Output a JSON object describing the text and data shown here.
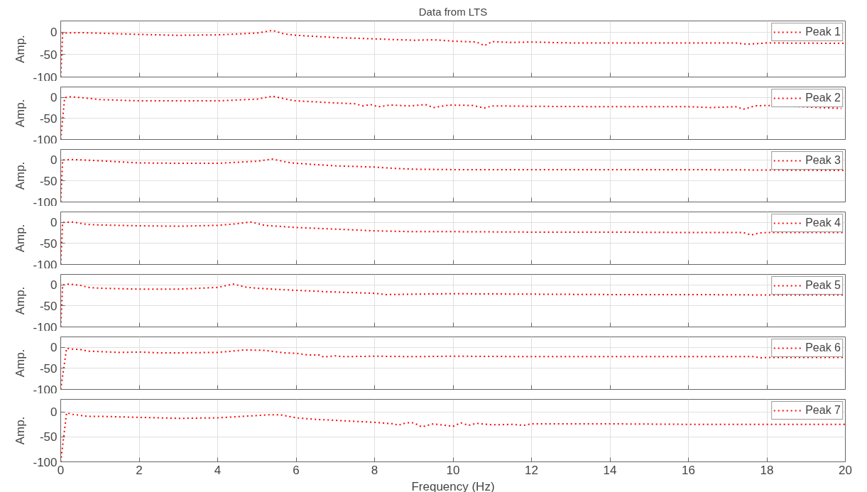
{
  "chart_data": [
    {
      "type": "line",
      "title": "Data from LTS",
      "ylabel": "Amp.",
      "xlim": [
        0,
        20
      ],
      "xticks": [
        0,
        2,
        4,
        6,
        8,
        10,
        12,
        14,
        16,
        18,
        20
      ],
      "ylim": [
        -100,
        25
      ],
      "yticks": [
        -100,
        -50,
        0
      ],
      "grid": true,
      "legend": "top right",
      "tick_labels": "y",
      "line_style": "dotted",
      "marker": "none",
      "series": [
        {
          "name": "Peak 1",
          "color": "#ff0000",
          "x": [
            0,
            0.05,
            0.5,
            2,
            3,
            4,
            5,
            5.4,
            5.7,
            6,
            7,
            8,
            9,
            9.5,
            10,
            10.6,
            10.8,
            11,
            11.5,
            12,
            13,
            14,
            16,
            17.2,
            17.5,
            18,
            20
          ],
          "values": [
            -100,
            -2,
            -1,
            -5,
            -7,
            -6,
            -2,
            4,
            -4,
            -7,
            -12,
            -15,
            -18,
            -17,
            -20,
            -22,
            -30,
            -21,
            -23,
            -22,
            -24,
            -24,
            -24,
            -24,
            -27,
            -24,
            -25
          ]
        }
      ]
    },
    {
      "type": "line",
      "ylabel": "Amp.",
      "xlim": [
        0,
        20
      ],
      "xticks": [
        0,
        2,
        4,
        6,
        8,
        10,
        12,
        14,
        16,
        18,
        20
      ],
      "ylim": [
        -100,
        25
      ],
      "yticks": [
        -100,
        -50,
        0
      ],
      "grid": true,
      "legend": "top right",
      "tick_labels": "y",
      "line_style": "dotted",
      "marker": "none",
      "series": [
        {
          "name": "Peak 2",
          "color": "#ff0000",
          "x": [
            0,
            0.1,
            0.2,
            0.6,
            1,
            2,
            3,
            4,
            5,
            5.4,
            5.8,
            6,
            7,
            7.5,
            7.7,
            7.9,
            8.1,
            8.4,
            8.9,
            9.3,
            9.5,
            9.9,
            10.5,
            10.8,
            11,
            12,
            14,
            16,
            16.6,
            17.2,
            17.4,
            17.7,
            18,
            19.9
          ],
          "values": [
            -100,
            -1,
            2,
            -1,
            -5,
            -8,
            -8,
            -8,
            -4,
            3,
            -5,
            -8,
            -13,
            -15,
            -20,
            -17,
            -22,
            -18,
            -20,
            -17,
            -24,
            -18,
            -19,
            -25,
            -20,
            -21,
            -22,
            -22,
            -24,
            -22,
            -28,
            -20,
            -19,
            -26
          ]
        }
      ]
    },
    {
      "type": "line",
      "ylabel": "Amp.",
      "xlim": [
        0,
        20
      ],
      "xticks": [
        0,
        2,
        4,
        6,
        8,
        10,
        12,
        14,
        16,
        18,
        20
      ],
      "ylim": [
        -100,
        25
      ],
      "yticks": [
        -100,
        -50,
        0
      ],
      "grid": true,
      "legend": "top right",
      "tick_labels": "y",
      "line_style": "dotted",
      "marker": "none",
      "series": [
        {
          "name": "Peak 3",
          "color": "#ff0000",
          "x": [
            0,
            0.05,
            0.3,
            1,
            2,
            3,
            4,
            5,
            5.4,
            5.8,
            6,
            7,
            8,
            8.5,
            9,
            10,
            12,
            14,
            16,
            18,
            20
          ],
          "values": [
            -100,
            0,
            1,
            -2,
            -7,
            -8,
            -8,
            -3,
            2,
            -6,
            -8,
            -14,
            -17,
            -20,
            -22,
            -23,
            -23,
            -23,
            -23,
            -24,
            -25
          ]
        }
      ]
    },
    {
      "type": "line",
      "ylabel": "Amp.",
      "xlim": [
        0,
        20
      ],
      "xticks": [
        0,
        2,
        4,
        6,
        8,
        10,
        12,
        14,
        16,
        18,
        20
      ],
      "ylim": [
        -100,
        25
      ],
      "yticks": [
        -100,
        -50,
        0
      ],
      "grid": true,
      "legend": "top right",
      "tick_labels": "y",
      "line_style": "dotted",
      "marker": "none",
      "series": [
        {
          "name": "Peak 4",
          "color": "#ff0000",
          "x": [
            0,
            0.05,
            0.3,
            0.7,
            1,
            2,
            3,
            4,
            4.5,
            4.85,
            5.2,
            6,
            7,
            8,
            9,
            10,
            12,
            14,
            16,
            17.4,
            17.6,
            17.8,
            18,
            20
          ],
          "values": [
            -100,
            0,
            1,
            -5,
            -6,
            -8,
            -9,
            -7,
            -3,
            1,
            -7,
            -12,
            -16,
            -20,
            -22,
            -22,
            -23,
            -23,
            -24,
            -24,
            -30,
            -25,
            -24,
            -24
          ]
        }
      ]
    },
    {
      "type": "line",
      "ylabel": "Amp.",
      "xlim": [
        0,
        20
      ],
      "xticks": [
        0,
        2,
        4,
        6,
        8,
        10,
        12,
        14,
        16,
        18,
        20
      ],
      "ylim": [
        -100,
        25
      ],
      "yticks": [
        -100,
        -50,
        0
      ],
      "grid": true,
      "legend": "top right",
      "tick_labels": "y",
      "line_style": "dotted",
      "marker": "none",
      "series": [
        {
          "name": "Peak 5",
          "color": "#ff0000",
          "x": [
            0,
            0.05,
            0.2,
            0.5,
            0.7,
            1,
            2,
            3,
            4,
            4.4,
            4.7,
            5,
            6,
            7,
            8,
            8.3,
            9,
            10,
            12,
            14,
            16,
            18,
            20
          ],
          "values": [
            -100,
            0,
            2,
            -1,
            -6,
            -8,
            -10,
            -10,
            -6,
            2,
            -5,
            -8,
            -13,
            -17,
            -20,
            -23,
            -22,
            -21,
            -22,
            -23,
            -23,
            -24,
            -24
          ]
        }
      ]
    },
    {
      "type": "line",
      "ylabel": "Amp.",
      "xlim": [
        0,
        20
      ],
      "xticks": [
        0,
        2,
        4,
        6,
        8,
        10,
        12,
        14,
        16,
        18,
        20
      ],
      "ylim": [
        -100,
        25
      ],
      "yticks": [
        -100,
        -50,
        0
      ],
      "grid": true,
      "legend": "top right",
      "tick_labels": "y",
      "line_style": "dotted",
      "marker": "none",
      "series": [
        {
          "name": "Peak 6",
          "color": "#ff0000",
          "x": [
            0,
            0.15,
            0.3,
            0.5,
            0.7,
            1,
            1.5,
            2,
            2.5,
            3,
            4,
            4.7,
            5.2,
            5.7,
            6,
            6.3,
            6.6,
            6.7,
            7,
            7.2,
            8,
            9,
            10,
            12,
            14,
            16,
            17.7,
            17.8,
            18,
            20
          ],
          "values": [
            -100,
            -2,
            -4,
            -5,
            -9,
            -10,
            -12,
            -11,
            -13,
            -13,
            -12,
            -6,
            -7,
            -13,
            -14,
            -18,
            -18,
            -23,
            -20,
            -22,
            -21,
            -22,
            -21,
            -22,
            -22,
            -22,
            -22,
            -25,
            -24,
            -24
          ]
        }
      ]
    },
    {
      "type": "line",
      "ylabel": "Amp.",
      "xlabel": "Frequency (Hz)",
      "xlim": [
        0,
        20
      ],
      "xticks": [
        0,
        2,
        4,
        6,
        8,
        10,
        12,
        14,
        16,
        18,
        20
      ],
      "ylim": [
        -100,
        25
      ],
      "yticks": [
        -100,
        -50,
        0
      ],
      "grid": true,
      "legend": "top right",
      "line_style": "dotted",
      "marker": "none",
      "series": [
        {
          "name": "Peak 7",
          "color": "#ff0000",
          "x": [
            0,
            0.15,
            0.3,
            0.7,
            1,
            2,
            3,
            4,
            5.3,
            5.6,
            6,
            6.5,
            7,
            8,
            8.5,
            8.6,
            8.8,
            9,
            9.2,
            9.5,
            10,
            10.2,
            10.4,
            10.6,
            11,
            11.5,
            11.8,
            12,
            14,
            16,
            18,
            20
          ],
          "values": [
            -100,
            -2,
            -5,
            -9,
            -9,
            -11,
            -13,
            -12,
            -6,
            -6,
            -12,
            -15,
            -17,
            -21,
            -24,
            -27,
            -22,
            -22,
            -30,
            -24,
            -29,
            -22,
            -27,
            -23,
            -26,
            -25,
            -27,
            -24,
            -24,
            -25,
            -25,
            -25
          ]
        }
      ]
    }
  ]
}
